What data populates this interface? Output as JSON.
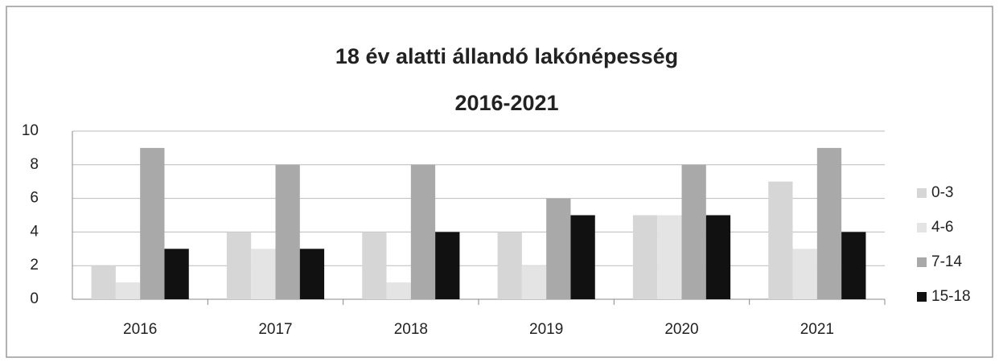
{
  "chart_data": {
    "type": "bar",
    "title": "18 év alatti állandó lakónépesség",
    "subtitle": "2016-2021",
    "categories": [
      "2016",
      "2017",
      "2018",
      "2019",
      "2020",
      "2021"
    ],
    "series": [
      {
        "name": "0-3",
        "color": "#d6d6d6",
        "values": [
          2,
          4,
          4,
          4,
          5,
          7
        ]
      },
      {
        "name": "4-6",
        "color": "#e4e4e4",
        "values": [
          1,
          3,
          1,
          2,
          5,
          3
        ]
      },
      {
        "name": "7-14",
        "color": "#a9a9a9",
        "values": [
          9,
          8,
          8,
          6,
          8,
          9
        ]
      },
      {
        "name": "15-18",
        "color": "#111111",
        "values": [
          3,
          3,
          4,
          5,
          5,
          4
        ]
      }
    ],
    "ylim": [
      0,
      10
    ],
    "yticks": [
      0,
      2,
      4,
      6,
      8,
      10
    ],
    "grid": true,
    "legend": "right"
  }
}
